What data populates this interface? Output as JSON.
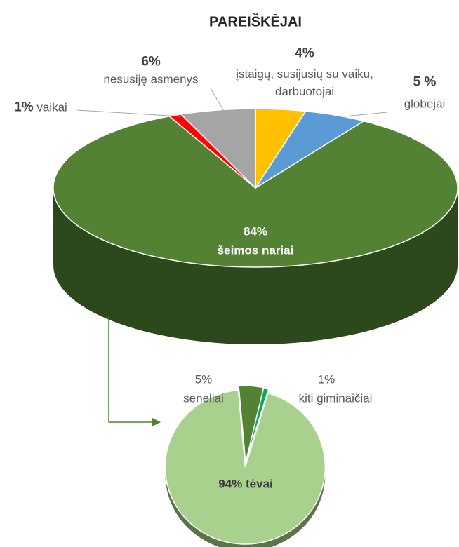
{
  "chart_data": [
    {
      "type": "pie",
      "title": "PAREIŠKĖJAI",
      "categories": [
        "įstaigų, susijusių su vaiku, darbuotojai",
        "globėjai",
        "šeimos nariai",
        "vaikai",
        "nesusiję asmenys"
      ],
      "values": [
        4,
        5,
        84,
        1,
        6
      ],
      "value_labels": [
        "4%",
        "5 %",
        "84%",
        "1%",
        "6%"
      ],
      "colors": [
        "#ffc000",
        "#5b9bd5",
        "#548235",
        "#ff0000",
        "#a5a5a5"
      ]
    },
    {
      "type": "pie",
      "categories": [
        "seneliai",
        "kiti giminaičiai",
        "tėvai"
      ],
      "values": [
        5,
        1,
        94
      ],
      "value_labels": [
        "5%",
        "1%",
        "94%"
      ],
      "colors": [
        "#548235",
        "#00b050",
        "#a9d18e"
      ]
    }
  ]
}
